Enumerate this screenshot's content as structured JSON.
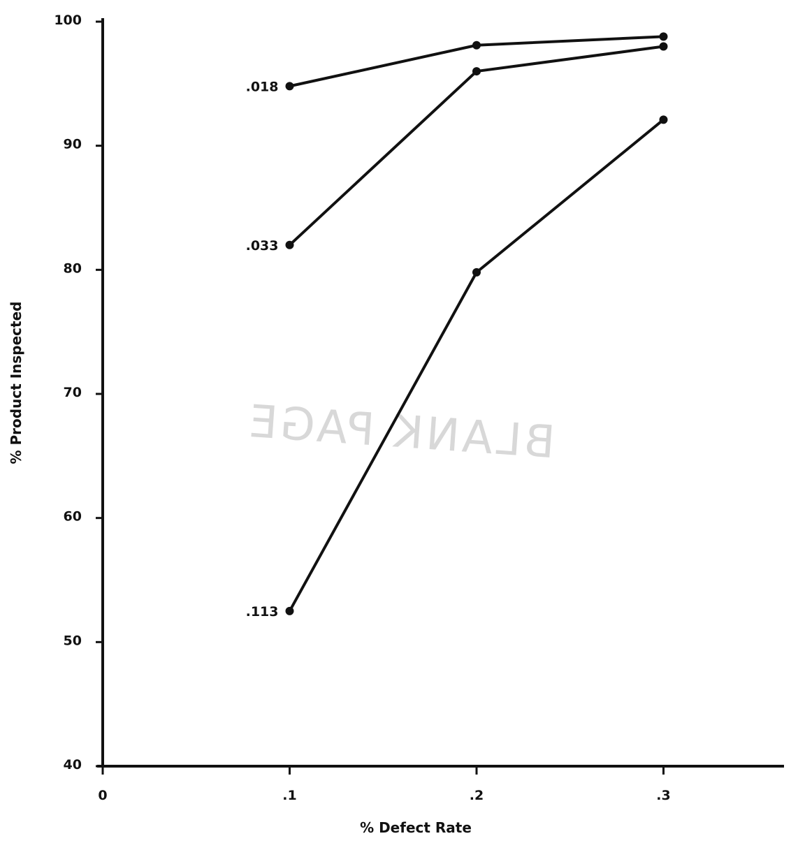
{
  "chart_data": {
    "type": "line",
    "title": "",
    "xlabel": "% Defect Rate",
    "ylabel": "% Product Inspected",
    "xlim": [
      0,
      0.37
    ],
    "ylim": [
      40,
      100
    ],
    "x_ticks": [
      {
        "value": 0,
        "label": "0"
      },
      {
        "value": 0.1,
        "label": ".1"
      },
      {
        "value": 0.2,
        "label": ".2"
      },
      {
        "value": 0.3,
        "label": ".3"
      }
    ],
    "y_ticks": [
      {
        "value": 40,
        "label": "40"
      },
      {
        "value": 50,
        "label": "50"
      },
      {
        "value": 60,
        "label": "60"
      },
      {
        "value": 70,
        "label": "70"
      },
      {
        "value": 80,
        "label": "80"
      },
      {
        "value": 90,
        "label": "90"
      },
      {
        "value": 100,
        "label": "100"
      }
    ],
    "grid": false,
    "legend": "none",
    "series": [
      {
        "name": ".018",
        "x": [
          0.1,
          0.2,
          0.3
        ],
        "y": [
          94.8,
          98.1,
          98.8
        ]
      },
      {
        "name": ".033",
        "x": [
          0.1,
          0.2,
          0.3
        ],
        "y": [
          82.0,
          96.0,
          98.0
        ]
      },
      {
        "name": ".113",
        "x": [
          0.1,
          0.2,
          0.3
        ],
        "y": [
          52.5,
          79.8,
          92.1
        ]
      }
    ],
    "annotation": "BLANK PAGE",
    "colors": {
      "ink": "#111111",
      "watermark": "#d8d8d8"
    }
  }
}
